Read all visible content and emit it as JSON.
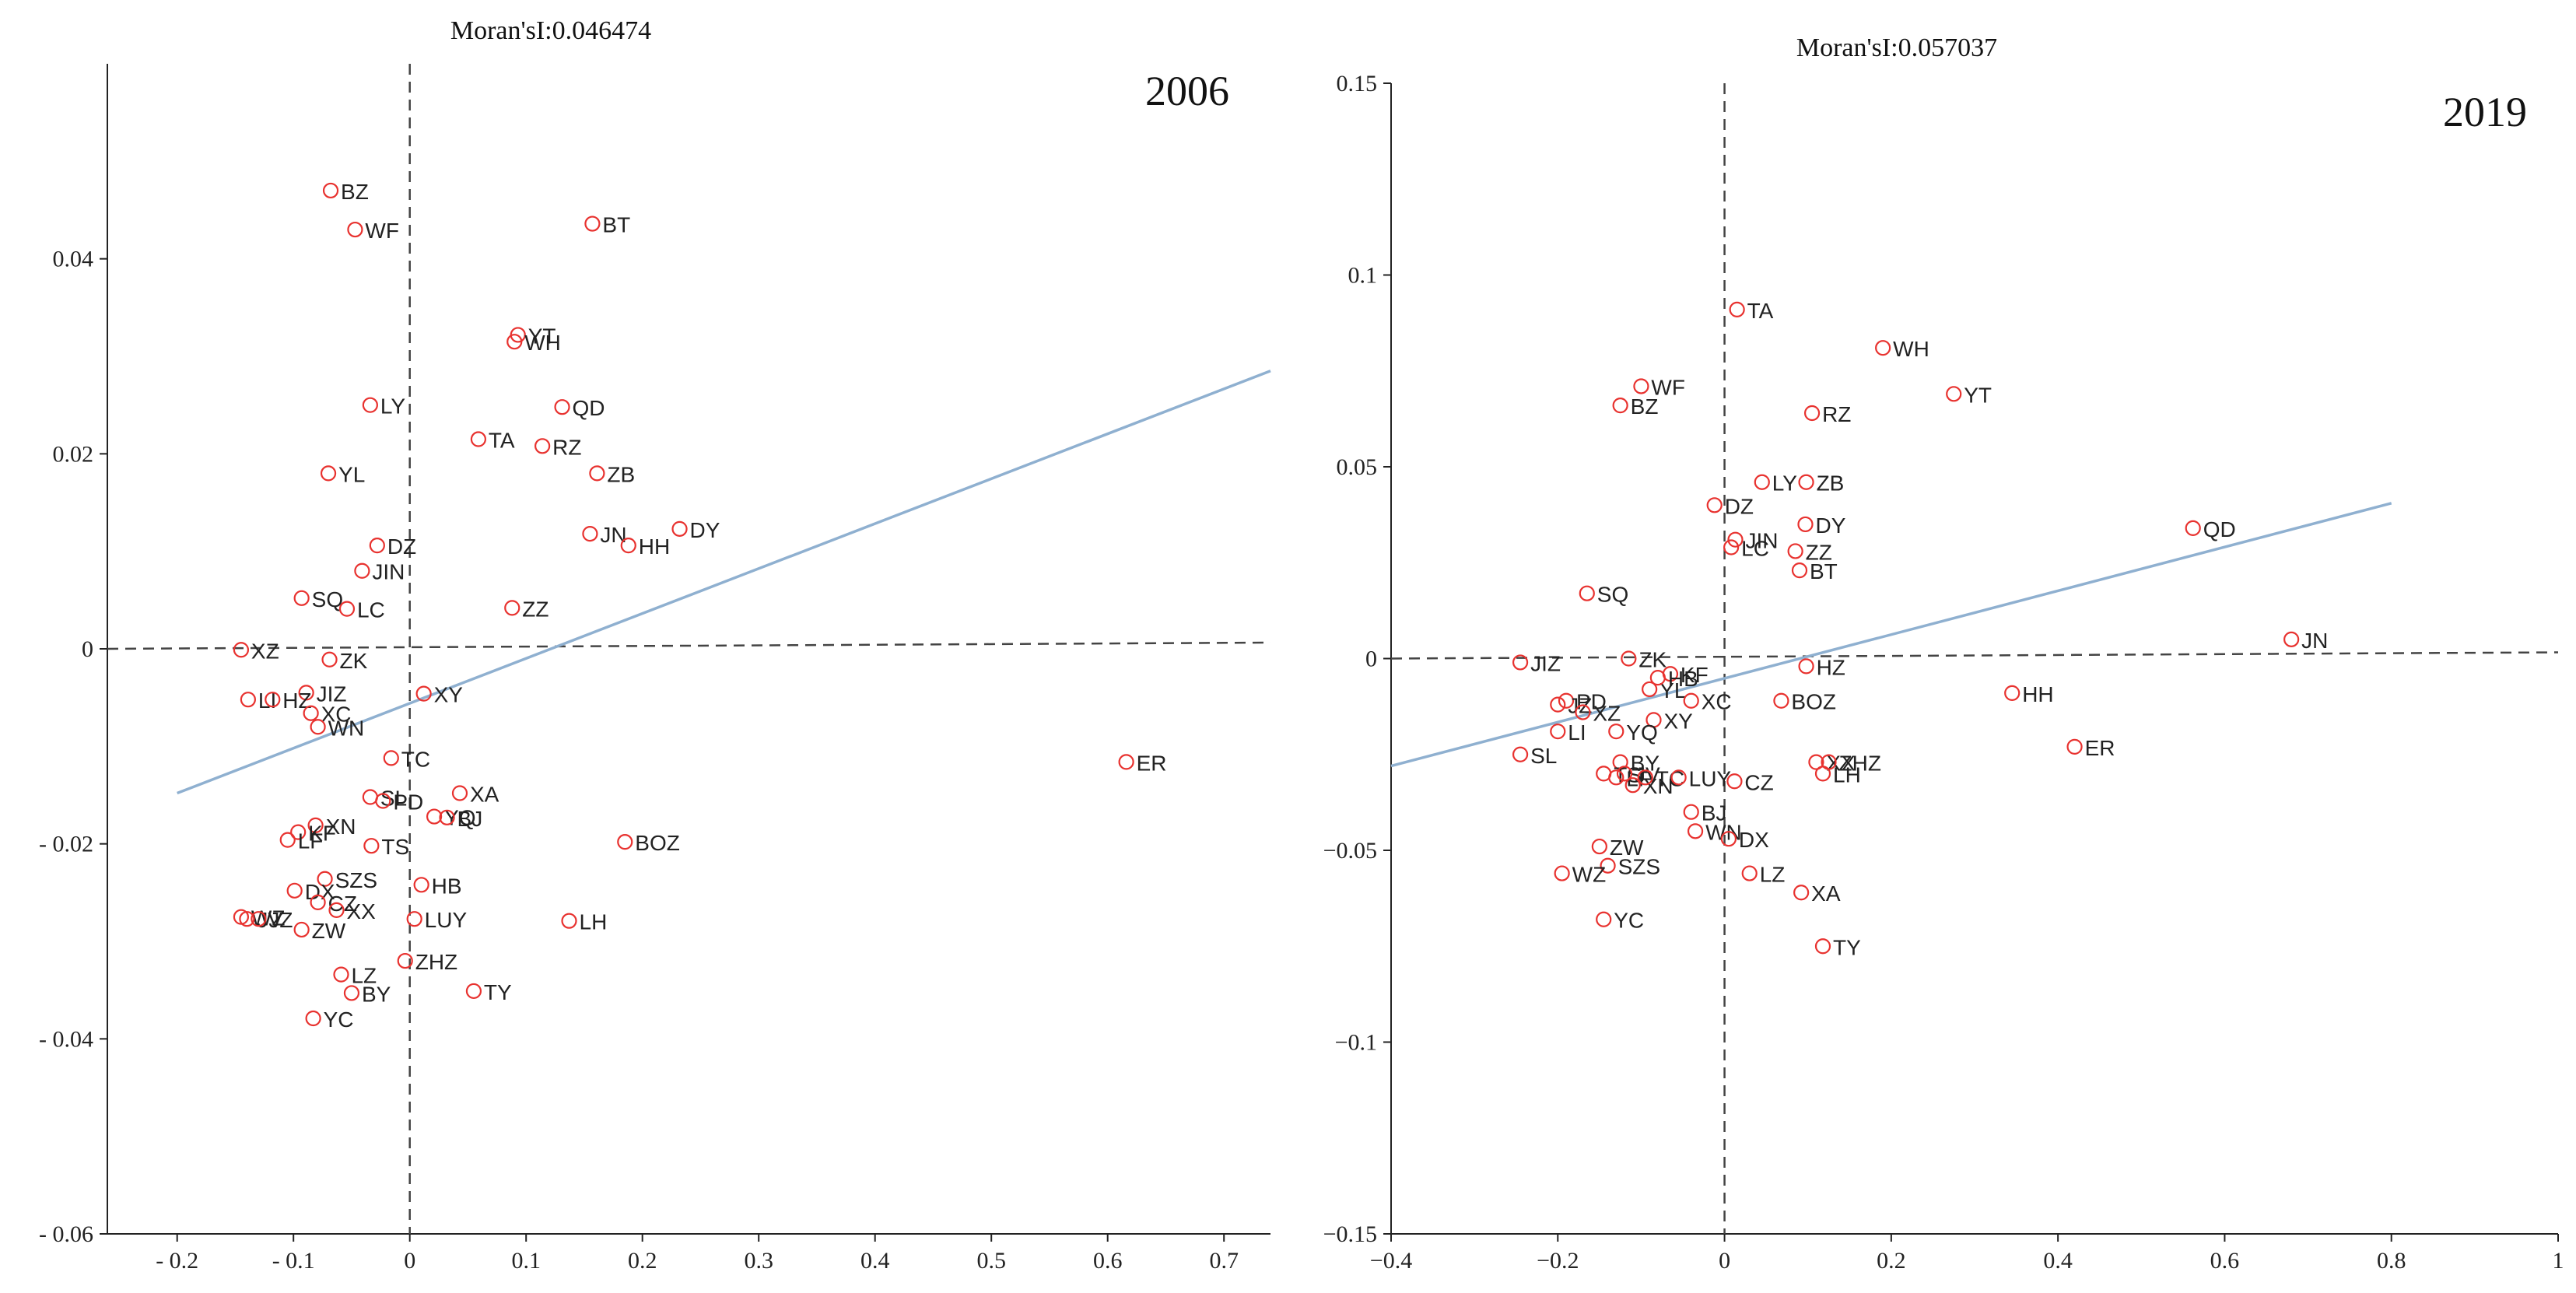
{
  "chart_data": [
    {
      "type": "scatter",
      "title": "Moran'sI:0.046474",
      "annotation": "2006",
      "xlim": [
        -0.26,
        0.74
      ],
      "ylim": [
        -0.06,
        0.06
      ],
      "xticks": [
        -0.2,
        -0.1,
        0,
        0.1,
        0.2,
        0.3,
        0.4,
        0.5,
        0.6,
        0.7
      ],
      "xtick_labels": [
        "- 0.2",
        "- 0.1",
        "0",
        "0.1",
        "0.2",
        "0.3",
        "0.4",
        "0.5",
        "0.6",
        "0.7"
      ],
      "yticks": [
        0.04,
        0.02,
        0,
        -0.02,
        -0.04,
        -0.06
      ],
      "ytick_labels": [
        "0.04",
        "0.02",
        "0",
        "- 0.02",
        "- 0.04",
        "- 0.06"
      ],
      "fit_line": {
        "x": [
          -0.2,
          0.74
        ],
        "y": [
          -0.0148,
          0.0285
        ]
      },
      "points": [
        {
          "label": "BZ",
          "x": -0.068,
          "y": 0.047
        },
        {
          "label": "WF",
          "x": -0.047,
          "y": 0.043
        },
        {
          "label": "BT",
          "x": 0.157,
          "y": 0.0436
        },
        {
          "label": "YT",
          "x": 0.093,
          "y": 0.0322
        },
        {
          "label": "WH",
          "x": 0.09,
          "y": 0.0315
        },
        {
          "label": "LY",
          "x": -0.034,
          "y": 0.025
        },
        {
          "label": "QD",
          "x": 0.131,
          "y": 0.0248
        },
        {
          "label": "TA",
          "x": 0.059,
          "y": 0.0215
        },
        {
          "label": "RZ",
          "x": 0.114,
          "y": 0.0208
        },
        {
          "label": "ZB",
          "x": 0.161,
          "y": 0.018
        },
        {
          "label": "YL",
          "x": -0.07,
          "y": 0.018
        },
        {
          "label": "DZ",
          "x": -0.028,
          "y": 0.0106
        },
        {
          "label": "DY",
          "x": 0.232,
          "y": 0.0123
        },
        {
          "label": "JN",
          "x": 0.155,
          "y": 0.0118
        },
        {
          "label": "HH",
          "x": 0.188,
          "y": 0.0106
        },
        {
          "label": "JIN",
          "x": -0.041,
          "y": 0.008
        },
        {
          "label": "SQ",
          "x": -0.093,
          "y": 0.0052
        },
        {
          "label": "LC",
          "x": -0.054,
          "y": 0.0041
        },
        {
          "label": "ZZ",
          "x": 0.088,
          "y": 0.0042
        },
        {
          "label": "XZ",
          "x": -0.145,
          "y": -0.0001
        },
        {
          "label": "ZK",
          "x": -0.069,
          "y": -0.0011
        },
        {
          "label": "JIZ",
          "x": -0.089,
          "y": -0.0045
        },
        {
          "label": "LI",
          "x": -0.139,
          "y": -0.0052
        },
        {
          "label": "HZ",
          "x": -0.118,
          "y": -0.0052
        },
        {
          "label": "XC",
          "x": -0.085,
          "y": -0.0066
        },
        {
          "label": "XY",
          "x": 0.012,
          "y": -0.0046
        },
        {
          "label": "WN",
          "x": -0.079,
          "y": -0.008
        },
        {
          "label": "TC",
          "x": -0.016,
          "y": -0.0112
        },
        {
          "label": "SL",
          "x": -0.034,
          "y": -0.0152
        },
        {
          "label": "PD",
          "x": -0.023,
          "y": -0.0156
        },
        {
          "label": "XA",
          "x": 0.043,
          "y": -0.0148
        },
        {
          "label": "YQ",
          "x": 0.021,
          "y": -0.0172
        },
        {
          "label": "BJ",
          "x": 0.032,
          "y": -0.0173
        },
        {
          "label": "XN",
          "x": -0.081,
          "y": -0.0181
        },
        {
          "label": "KF",
          "x": -0.096,
          "y": -0.0188
        },
        {
          "label": "LF",
          "x": -0.105,
          "y": -0.0196
        },
        {
          "label": "TS",
          "x": -0.033,
          "y": -0.0202
        },
        {
          "label": "BOZ",
          "x": 0.185,
          "y": -0.0198
        },
        {
          "label": "SZS",
          "x": -0.073,
          "y": -0.0236
        },
        {
          "label": "DX",
          "x": -0.099,
          "y": -0.0248
        },
        {
          "label": "HB",
          "x": 0.01,
          "y": -0.0242
        },
        {
          "label": "CZ",
          "x": -0.079,
          "y": -0.026
        },
        {
          "label": "XX",
          "x": -0.063,
          "y": -0.0268
        },
        {
          "label": "WZ",
          "x": -0.145,
          "y": -0.0275
        },
        {
          "label": "JV",
          "x": -0.14,
          "y": -0.0277
        },
        {
          "label": "JZ",
          "x": -0.13,
          "y": -0.0277
        },
        {
          "label": "LUY",
          "x": 0.004,
          "y": -0.0277
        },
        {
          "label": "ZW",
          "x": -0.093,
          "y": -0.0288
        },
        {
          "label": "LH",
          "x": 0.137,
          "y": -0.0279
        },
        {
          "label": "ZHZ",
          "x": -0.004,
          "y": -0.032
        },
        {
          "label": "LZ",
          "x": -0.059,
          "y": -0.0334
        },
        {
          "label": "BY",
          "x": -0.05,
          "y": -0.0353
        },
        {
          "label": "TY",
          "x": 0.055,
          "y": -0.0351
        },
        {
          "label": "YC",
          "x": -0.083,
          "y": -0.0379
        },
        {
          "label": "ER",
          "x": 0.616,
          "y": -0.0116
        }
      ]
    },
    {
      "type": "scatter",
      "title": "Moran'sI:0.057037",
      "annotation": "2019",
      "xlim": [
        -0.4,
        1
      ],
      "ylim": [
        -0.15,
        0.15
      ],
      "xticks": [
        -0.4,
        -0.2,
        0,
        0.2,
        0.4,
        0.6,
        0.8,
        1
      ],
      "xtick_labels": [
        "−0.4",
        "−0.2",
        "0",
        "0.2",
        "0.4",
        "0.6",
        "0.8",
        "1"
      ],
      "yticks": [
        0.15,
        0.1,
        0.05,
        0,
        -0.05,
        -0.1,
        -0.15
      ],
      "ytick_labels": [
        "0.15",
        "0.1",
        "0.05",
        "0",
        "−0.05",
        "−0.1",
        "−0.15"
      ],
      "fit_line": {
        "x": [
          -0.4,
          0.8
        ],
        "y": [
          -0.028,
          0.0405
        ]
      },
      "points": [
        {
          "label": "TA",
          "x": 0.015,
          "y": 0.091
        },
        {
          "label": "WH",
          "x": 0.19,
          "y": 0.081
        },
        {
          "label": "WF",
          "x": -0.1,
          "y": 0.071
        },
        {
          "label": "YT",
          "x": 0.275,
          "y": 0.069
        },
        {
          "label": "BZ",
          "x": -0.125,
          "y": 0.066
        },
        {
          "label": "RZ",
          "x": 0.105,
          "y": 0.064
        },
        {
          "label": "LY",
          "x": 0.045,
          "y": 0.046
        },
        {
          "label": "ZB",
          "x": 0.098,
          "y": 0.046
        },
        {
          "label": "DZ",
          "x": -0.012,
          "y": 0.04
        },
        {
          "label": "JIN",
          "x": 0.013,
          "y": 0.031
        },
        {
          "label": "DY",
          "x": 0.097,
          "y": 0.035
        },
        {
          "label": "LC",
          "x": 0.008,
          "y": 0.029
        },
        {
          "label": "ZZ",
          "x": 0.085,
          "y": 0.028
        },
        {
          "label": "BT",
          "x": 0.09,
          "y": 0.023
        },
        {
          "label": "QD",
          "x": 0.562,
          "y": 0.034
        },
        {
          "label": "SQ",
          "x": -0.165,
          "y": 0.017
        },
        {
          "label": "JN",
          "x": 0.68,
          "y": 0.005
        },
        {
          "label": "ZK",
          "x": -0.115,
          "y": 0
        },
        {
          "label": "KF",
          "x": -0.065,
          "y": -0.004
        },
        {
          "label": "JIZ",
          "x": -0.245,
          "y": -0.001
        },
        {
          "label": "HZ",
          "x": 0.098,
          "y": -0.002
        },
        {
          "label": "PD",
          "x": -0.19,
          "y": -0.011
        },
        {
          "label": "YL",
          "x": -0.09,
          "y": -0.008
        },
        {
          "label": "HB",
          "x": -0.08,
          "y": -0.005
        },
        {
          "label": "XC",
          "x": -0.04,
          "y": -0.011
        },
        {
          "label": "JZ",
          "x": -0.2,
          "y": -0.012
        },
        {
          "label": "XZ",
          "x": -0.17,
          "y": -0.014
        },
        {
          "label": "XY",
          "x": -0.085,
          "y": -0.016
        },
        {
          "label": "BOZ",
          "x": 0.068,
          "y": -0.011
        },
        {
          "label": "YQ",
          "x": -0.13,
          "y": -0.019
        },
        {
          "label": "HH",
          "x": 0.345,
          "y": -0.009
        },
        {
          "label": "LI",
          "x": -0.2,
          "y": -0.019
        },
        {
          "label": "SL",
          "x": -0.245,
          "y": -0.025
        },
        {
          "label": "BY",
          "x": -0.125,
          "y": -0.027
        },
        {
          "label": "TS",
          "x": -0.145,
          "y": -0.03
        },
        {
          "label": "LF",
          "x": -0.13,
          "y": -0.031
        },
        {
          "label": "JV",
          "x": -0.12,
          "y": -0.03
        },
        {
          "label": "XN",
          "x": -0.11,
          "y": -0.033
        },
        {
          "label": "TC",
          "x": -0.095,
          "y": -0.031
        },
        {
          "label": "LUY",
          "x": -0.055,
          "y": -0.031
        },
        {
          "label": "CZ",
          "x": 0.012,
          "y": -0.032
        },
        {
          "label": "XX",
          "x": 0.11,
          "y": -0.027
        },
        {
          "label": "ZHZ",
          "x": 0.125,
          "y": -0.027
        },
        {
          "label": "LH",
          "x": 0.118,
          "y": -0.03
        },
        {
          "label": "ER",
          "x": 0.42,
          "y": -0.023
        },
        {
          "label": "BJ",
          "x": -0.04,
          "y": -0.04
        },
        {
          "label": "ZW",
          "x": -0.15,
          "y": -0.049
        },
        {
          "label": "WN",
          "x": -0.035,
          "y": -0.045
        },
        {
          "label": "DX",
          "x": 0.005,
          "y": -0.047
        },
        {
          "label": "SZS",
          "x": -0.14,
          "y": -0.054
        },
        {
          "label": "LZ",
          "x": 0.03,
          "y": -0.056
        },
        {
          "label": "WZ",
          "x": -0.195,
          "y": -0.056
        },
        {
          "label": "XA",
          "x": 0.092,
          "y": -0.061
        },
        {
          "label": "YC",
          "x": -0.145,
          "y": -0.068
        },
        {
          "label": "TY",
          "x": 0.118,
          "y": -0.075
        }
      ]
    }
  ]
}
